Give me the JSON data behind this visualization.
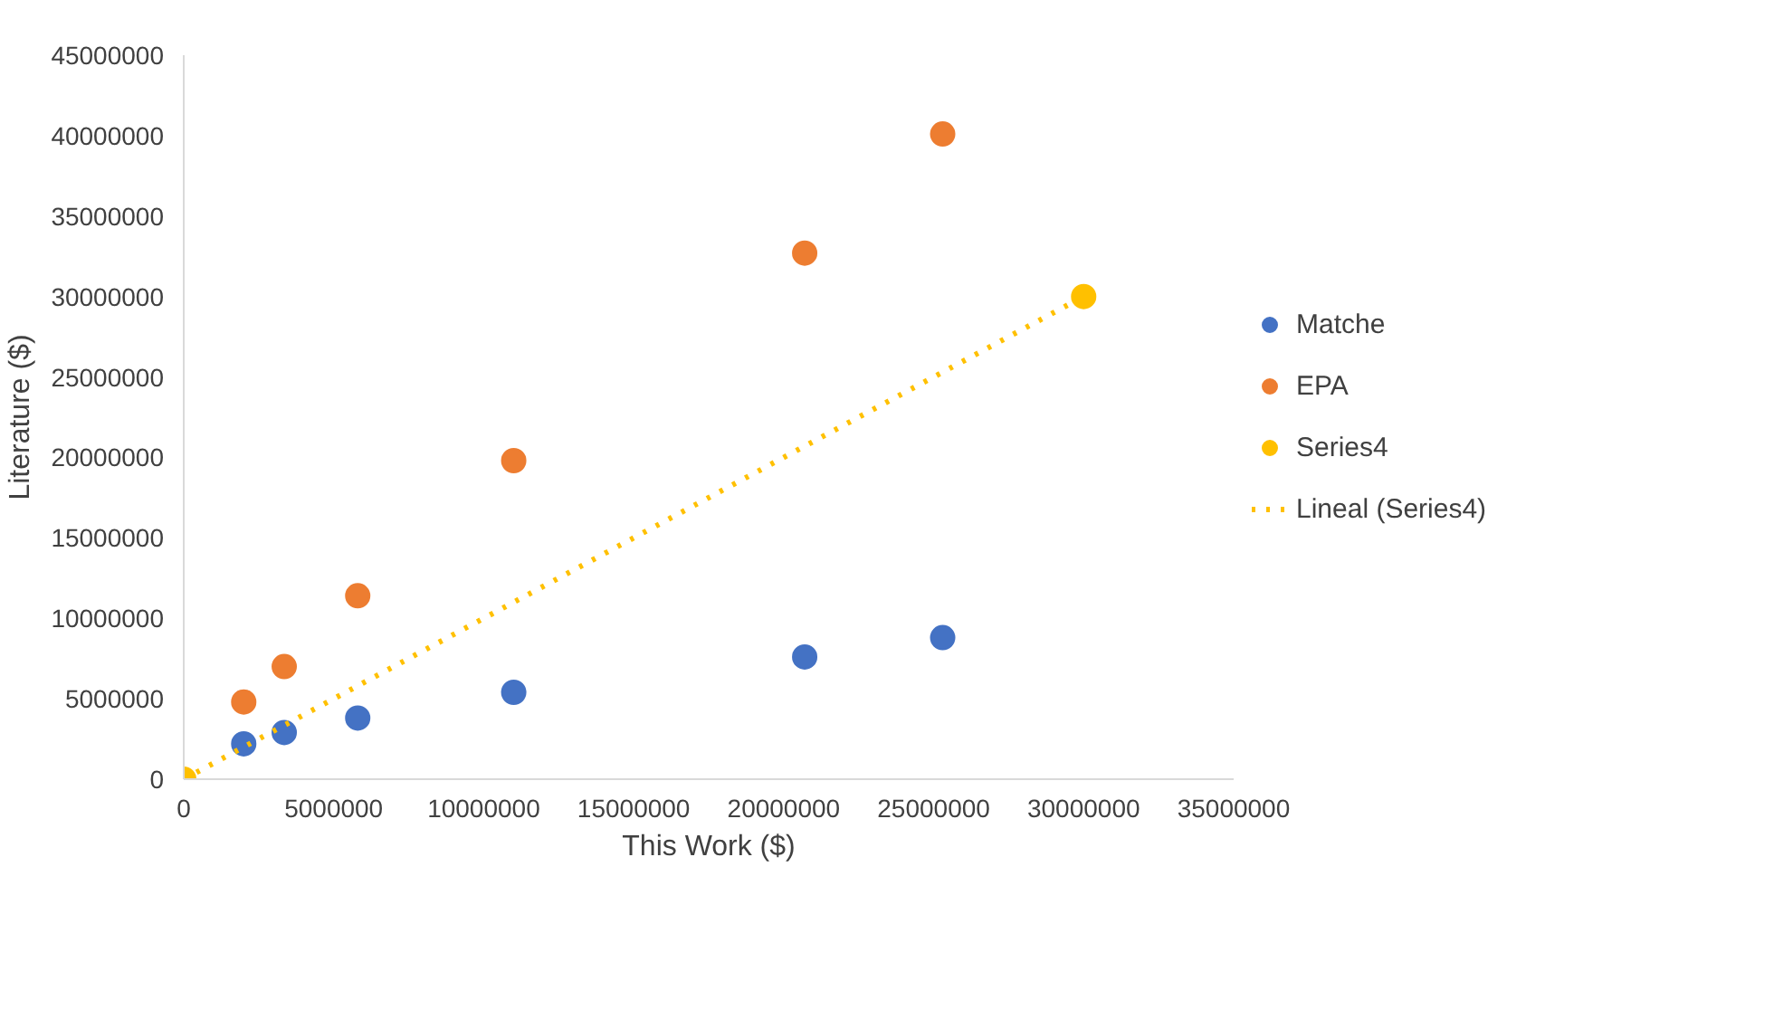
{
  "chart_data": {
    "type": "scatter",
    "xlabel": "This Work ($)",
    "ylabel": "Literature ($)",
    "xlim": [
      0,
      35000000
    ],
    "ylim": [
      0,
      45000000
    ],
    "xticks": [
      0,
      5000000,
      10000000,
      15000000,
      20000000,
      25000000,
      30000000,
      35000000
    ],
    "yticks": [
      0,
      5000000,
      10000000,
      15000000,
      20000000,
      25000000,
      30000000,
      35000000,
      40000000,
      45000000
    ],
    "grid": false,
    "legend": "right",
    "marker": "circle",
    "series": [
      {
        "name": "Matche",
        "color": "#4472c4",
        "x": [
          2000000,
          3350000,
          5800000,
          11000000,
          20700000,
          25300000
        ],
        "values": [
          2200000,
          2900000,
          3800000,
          5400000,
          7600000,
          8800000
        ]
      },
      {
        "name": "EPA",
        "color": "#ed7d31",
        "x": [
          2000000,
          3350000,
          5800000,
          11000000,
          20700000,
          25300000
        ],
        "values": [
          4800000,
          7000000,
          11400000,
          19800000,
          32700000,
          40100000
        ]
      },
      {
        "name": "Series4",
        "color": "#ffc000",
        "x": [
          0,
          30000000
        ],
        "values": [
          0,
          30000000
        ]
      },
      {
        "name": "Lineal (Series4)",
        "type": "line",
        "marker": "none",
        "line_style": "dotted",
        "color": "#ffc000",
        "x": [
          0,
          30000000
        ],
        "values": [
          0,
          30000000
        ]
      }
    ]
  }
}
